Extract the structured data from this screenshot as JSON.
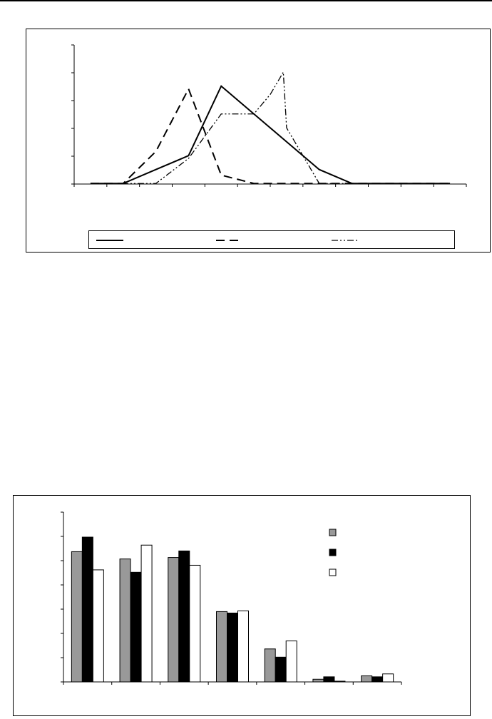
{
  "charts": {
    "line_chart_visible_labels": [],
    "bar_chart_visible_labels": []
  },
  "chart_data": [
    {
      "type": "line",
      "title": "",
      "xlabel": "",
      "ylabel": "",
      "x": [
        1,
        2,
        3,
        4,
        5,
        6,
        7,
        8,
        9,
        10,
        11,
        12
      ],
      "ylim": [
        0,
        5
      ],
      "grid": false,
      "legend": "bottom",
      "series": [
        {
          "style": "solid",
          "color": "#000000",
          "x": [
            1,
            2,
            3,
            4,
            5,
            6,
            7,
            8,
            9,
            10,
            11,
            12
          ],
          "values": [
            0.02,
            0.02,
            0.52,
            1.02,
            3.52,
            2.52,
            1.52,
            0.52,
            0.02,
            0.02,
            0.02,
            0.02
          ]
        },
        {
          "style": "dashed",
          "color": "#000000",
          "x": [
            1,
            2,
            3,
            4,
            5,
            6,
            7,
            8,
            9,
            10,
            11,
            12
          ],
          "values": [
            0.02,
            0.02,
            1.17,
            3.42,
            0.32,
            0.02,
            0.02,
            0.02,
            0.02,
            0.02,
            0.02,
            0.02
          ]
        },
        {
          "style": "dash-dot-dot",
          "color": "#000000",
          "x": [
            1,
            2,
            3,
            4,
            5,
            6,
            6.5,
            6.9,
            7,
            8,
            9,
            10,
            11,
            12
          ],
          "values": [
            0.02,
            0.02,
            0.02,
            0.92,
            2.52,
            2.52,
            3.22,
            4.02,
            2.02,
            0.02,
            0.02,
            0.02,
            0.02,
            0.02
          ]
        }
      ]
    },
    {
      "type": "bar",
      "title": "",
      "xlabel": "",
      "ylabel": "",
      "categories": [
        "",
        "",
        "",
        "",
        "",
        "",
        ""
      ],
      "ylim": [
        0,
        7
      ],
      "grid": false,
      "legend": "top-right",
      "series": [
        {
          "color": "#999999",
          "values": [
            5.37,
            5.07,
            5.13,
            2.9,
            1.36,
            0.11,
            0.25
          ]
        },
        {
          "color": "#000000",
          "values": [
            5.97,
            4.52,
            5.4,
            2.84,
            1.02,
            0.21,
            0.21
          ]
        },
        {
          "color": "#ffffff",
          "values": [
            4.62,
            5.64,
            4.81,
            2.93,
            1.69,
            0.03,
            0.33
          ]
        }
      ]
    }
  ]
}
